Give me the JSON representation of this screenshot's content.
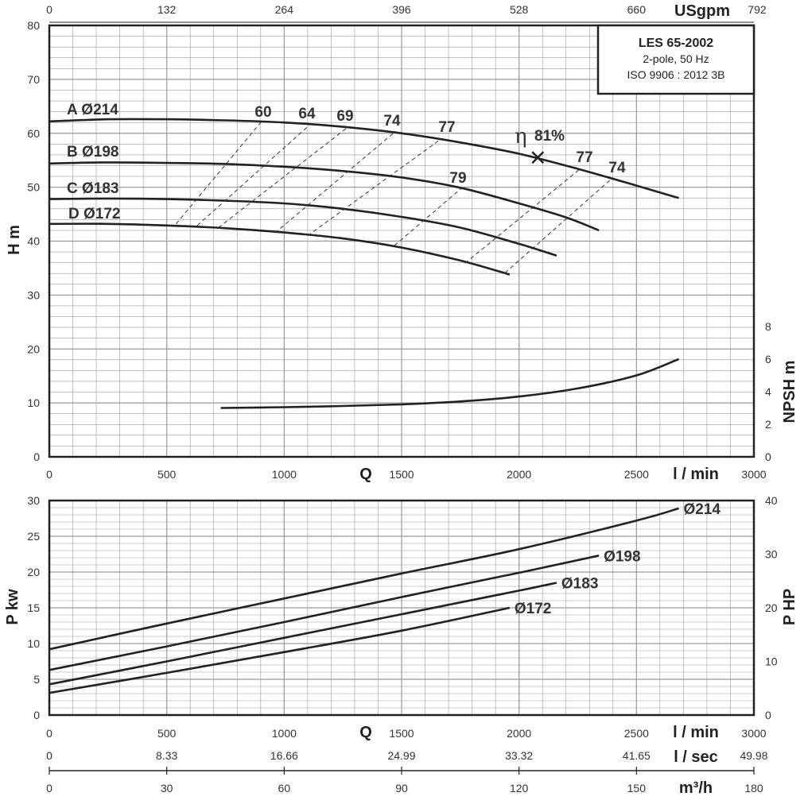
{
  "info_box": {
    "title": "LES 65-2002",
    "line1": "2-pole, 50 Hz",
    "line2": "ISO 9906 : 2012 3B"
  },
  "colors": {
    "curve": "#222222",
    "grid": "#9a9a9a",
    "frame": "#222222"
  },
  "chart_data": [
    {
      "type": "line",
      "name": "head",
      "ylabel": "H m",
      "ylim": [
        0,
        80
      ],
      "yticks": [
        "0",
        "10",
        "20",
        "30",
        "40",
        "50",
        "60",
        "70",
        "80"
      ],
      "xlabel": "Q",
      "xunit": "l / min",
      "xlim": [
        0,
        3000
      ],
      "xticks": [
        "0",
        "500",
        "1000",
        "1500",
        "2000",
        "2500",
        "3000"
      ],
      "top_axis": {
        "label": "USgpm",
        "ticks": [
          "0",
          "132",
          "264",
          "396",
          "528",
          "660",
          "792"
        ]
      },
      "right_axis": {
        "label": "NPSH m",
        "ylim": [
          0,
          8
        ],
        "ticks": [
          "0",
          "2",
          "4",
          "6",
          "8"
        ]
      },
      "grid": true,
      "series": [
        {
          "name": "A Ø214",
          "x": [
            0,
            250,
            500,
            750,
            1000,
            1250,
            1500,
            1750,
            2000,
            2250,
            2500,
            2680
          ],
          "y": [
            62.2,
            62.6,
            62.6,
            62.4,
            62.0,
            61.2,
            60.0,
            58.3,
            56.2,
            53.4,
            50.3,
            48.0
          ]
        },
        {
          "name": "B Ø198",
          "x": [
            0,
            250,
            500,
            750,
            1000,
            1250,
            1500,
            1750,
            2000,
            2200,
            2340
          ],
          "y": [
            54.4,
            54.6,
            54.5,
            54.3,
            53.8,
            53.0,
            51.8,
            49.9,
            47.0,
            44.4,
            42.0
          ]
        },
        {
          "name": "C Ø183",
          "x": [
            0,
            250,
            500,
            750,
            1000,
            1250,
            1500,
            1750,
            2000,
            2160
          ],
          "y": [
            47.8,
            47.9,
            47.8,
            47.5,
            47.0,
            46.0,
            44.5,
            42.5,
            39.5,
            37.3
          ]
        },
        {
          "name": "D Ø172",
          "x": [
            0,
            250,
            500,
            750,
            1000,
            1250,
            1500,
            1750,
            1960
          ],
          "y": [
            43.2,
            43.2,
            42.9,
            42.4,
            41.6,
            40.5,
            38.8,
            36.4,
            33.8
          ]
        },
        {
          "name": "NPSH",
          "axis": "right",
          "x": [
            730,
            1000,
            1250,
            1500,
            1750,
            2000,
            2250,
            2500,
            2680
          ],
          "y": [
            3.0,
            3.05,
            3.12,
            3.22,
            3.4,
            3.7,
            4.2,
            5.0,
            6.0
          ]
        }
      ],
      "efficiency_lines": [
        {
          "label": "60",
          "points": [
            [
              540,
              43.2
            ],
            [
              900,
              62.0
            ]
          ]
        },
        {
          "label": "64",
          "points": [
            [
              630,
              42.9
            ],
            [
              1110,
              61.6
            ]
          ]
        },
        {
          "label": "69",
          "points": [
            [
              720,
              42.5
            ],
            [
              1270,
              61.1
            ]
          ]
        },
        {
          "label": "74",
          "points": [
            [
              960,
              41.5
            ],
            [
              1470,
              60.2
            ]
          ]
        },
        {
          "label": "77",
          "points": [
            [
              1100,
              41.0
            ],
            [
              1660,
              58.7
            ]
          ]
        },
        {
          "label": "79",
          "points": [
            [
              1470,
              39.2
            ],
            [
              1760,
              50.0
            ]
          ]
        },
        {
          "label": "77",
          "points": [
            [
              1770,
              35.9
            ],
            [
              2260,
              53.4
            ]
          ]
        },
        {
          "label": "74",
          "points": [
            [
              1940,
              34.1
            ],
            [
              2400,
              51.8
            ]
          ]
        }
      ],
      "best_efficiency": {
        "label": "81%",
        "symbol": "η",
        "x": 2080,
        "y": 55.5
      }
    },
    {
      "type": "line",
      "name": "power",
      "ylabel": "P kw",
      "ylim": [
        0,
        30
      ],
      "yticks": [
        "0",
        "5",
        "10",
        "15",
        "20",
        "25",
        "30"
      ],
      "xlabel": "Q",
      "xunit": "l / min",
      "xlim": [
        0,
        3000
      ],
      "xticks": [
        "0",
        "500",
        "1000",
        "1500",
        "2000",
        "2500",
        "3000"
      ],
      "right_axis": {
        "label": "P HP",
        "ylim": [
          0,
          40
        ],
        "ticks": [
          "0",
          "10",
          "20",
          "30",
          "40"
        ]
      },
      "extra_axes": [
        {
          "unit": "l / sec",
          "ticks": [
            "0",
            "8.33",
            "16.66",
            "24.99",
            "33.32",
            "41.65",
            "49.98"
          ]
        },
        {
          "unit": "m³/h",
          "ticks": [
            "0",
            "30",
            "60",
            "90",
            "120",
            "150",
            "180"
          ]
        }
      ],
      "grid": true,
      "series": [
        {
          "name": "Ø214",
          "x": [
            0,
            500,
            1000,
            1500,
            2000,
            2500,
            2680
          ],
          "y": [
            9.2,
            12.8,
            16.3,
            19.8,
            23.2,
            27.2,
            28.9
          ]
        },
        {
          "name": "Ø198",
          "x": [
            0,
            500,
            1000,
            1500,
            2000,
            2340
          ],
          "y": [
            6.3,
            9.6,
            13.0,
            16.5,
            19.9,
            22.3
          ]
        },
        {
          "name": "Ø183",
          "x": [
            0,
            500,
            1000,
            1500,
            2000,
            2160
          ],
          "y": [
            4.3,
            7.5,
            10.8,
            14.1,
            17.4,
            18.5
          ]
        },
        {
          "name": "Ø172",
          "x": [
            0,
            500,
            1000,
            1500,
            1960
          ],
          "y": [
            3.1,
            5.9,
            8.8,
            11.8,
            15.0
          ]
        }
      ]
    }
  ]
}
